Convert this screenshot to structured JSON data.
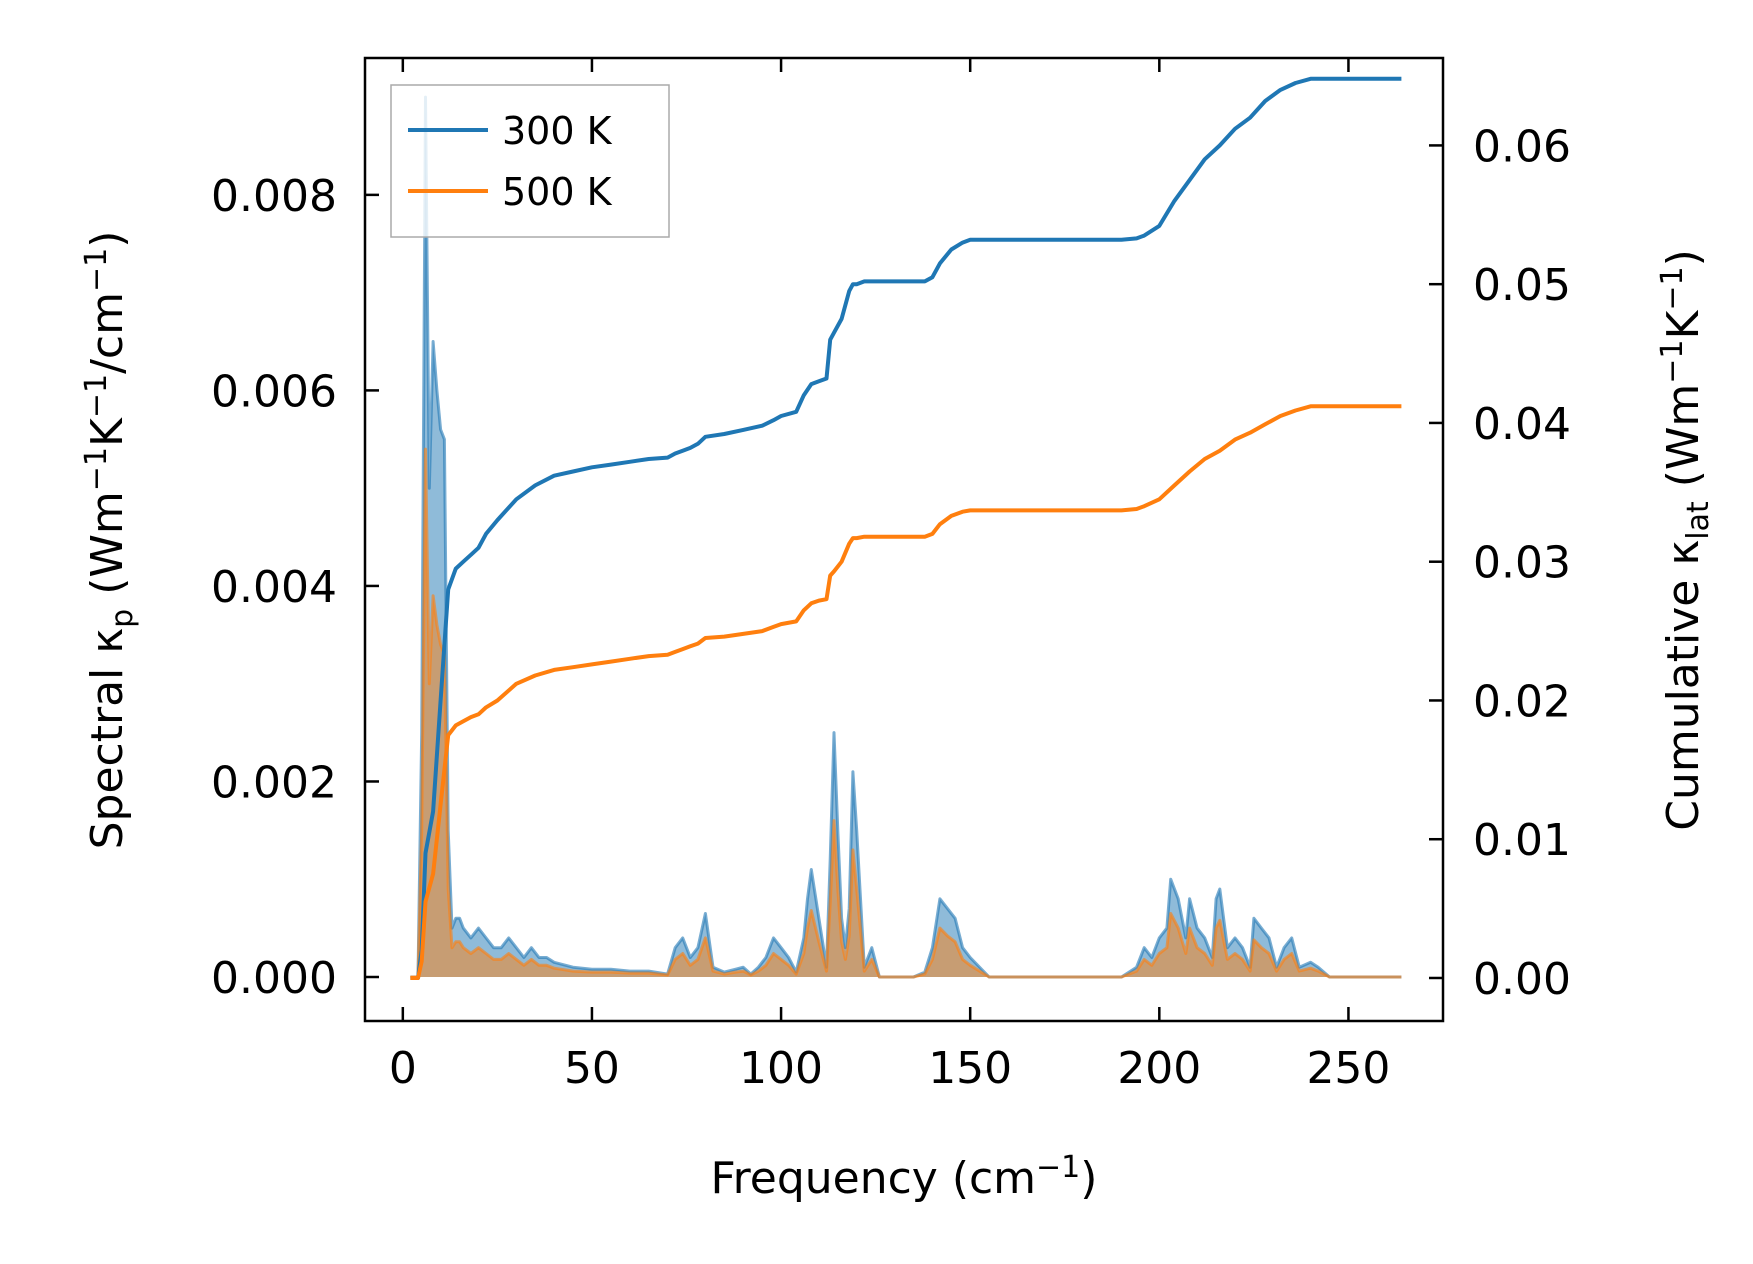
{
  "chart_data": {
    "type": "line",
    "xlabel": {
      "main": "Frequency (cm",
      "sup": "−1",
      "close": ")"
    },
    "ylabel_left": {
      "main": "Spectral κ",
      "sub": "p",
      "units": " (Wm",
      "sup1": "−1",
      "k": "K",
      "sup2": "−1",
      "percm": "/cm",
      "sup3": "−1",
      "close": ")"
    },
    "ylabel_right": {
      "main": "Cumulative κ",
      "sub": "lat",
      "units": " (Wm",
      "sup1": "−1",
      "k": "K",
      "sup2": "−1",
      "close": ")"
    },
    "xlim": [
      -10,
      275
    ],
    "ylim_left": [
      -0.00045,
      0.0094
    ],
    "ylim_right": [
      -0.0031,
      0.0663
    ],
    "xticks": [
      0,
      50,
      100,
      150,
      200,
      250
    ],
    "xtick_labels": [
      "0",
      "50",
      "100",
      "150",
      "200",
      "250"
    ],
    "yticks_left": [
      0,
      0.002,
      0.004,
      0.006,
      0.008
    ],
    "ytick_labels_left": [
      "0.000",
      "0.002",
      "0.004",
      "0.006",
      "0.008"
    ],
    "yticks_right": [
      0,
      0.01,
      0.02,
      0.03,
      0.04,
      0.05,
      0.06
    ],
    "ytick_labels_right": [
      "0.00",
      "0.01",
      "0.02",
      "0.03",
      "0.04",
      "0.05",
      "0.06"
    ],
    "legend_position": "top-left",
    "series": [
      {
        "name": "300 K",
        "color": "#1f77b4",
        "spectral": {
          "x": [
            2,
            4,
            5,
            6,
            7,
            8,
            9,
            10,
            11,
            12,
            13,
            14,
            15,
            16,
            18,
            20,
            22,
            24,
            26,
            28,
            30,
            32,
            34,
            36,
            38,
            40,
            45,
            50,
            55,
            60,
            65,
            70,
            72,
            74,
            76,
            78,
            80,
            82,
            85,
            88,
            90,
            92,
            94,
            96,
            98,
            100,
            102,
            104,
            106,
            107,
            108,
            110,
            112,
            113,
            114,
            115,
            116,
            117,
            118,
            119,
            120,
            122,
            124,
            126,
            130,
            135,
            138,
            140,
            142,
            144,
            146,
            148,
            150,
            155,
            160,
            170,
            180,
            190,
            194,
            196,
            198,
            200,
            202,
            203,
            205,
            207,
            208,
            210,
            212,
            214,
            215,
            216,
            218,
            220,
            222,
            224,
            225,
            227,
            229,
            231,
            233,
            235,
            237,
            240,
            242,
            245,
            250,
            255,
            260,
            264
          ],
          "y": [
            0,
            0,
            0.0025,
            0.009,
            0.005,
            0.0065,
            0.006,
            0.0056,
            0.0055,
            0.0015,
            0.0005,
            0.0006,
            0.0006,
            0.0005,
            0.0004,
            0.0005,
            0.0004,
            0.0003,
            0.0003,
            0.0004,
            0.0003,
            0.0002,
            0.0003,
            0.0002,
            0.0002,
            0.00015,
            0.0001,
            8e-05,
            8e-05,
            6e-05,
            6e-05,
            3e-05,
            0.0003,
            0.0004,
            0.0002,
            0.0003,
            0.00065,
            0.0001,
            5e-05,
            8e-05,
            0.0001,
            3e-05,
            0.0001,
            0.0002,
            0.0004,
            0.0003,
            0.0002,
            5e-05,
            0.0004,
            0.0008,
            0.0011,
            0.0006,
            0.0001,
            0.0012,
            0.0025,
            0.0015,
            0.0006,
            0.0003,
            0.0007,
            0.0021,
            0.0015,
            0.0001,
            0.0003,
            0,
            0,
            0,
            5e-05,
            0.0003,
            0.0008,
            0.0007,
            0.0006,
            0.0003,
            0.0002,
            0,
            0,
            0,
            0,
            0,
            0.0001,
            0.0003,
            0.0002,
            0.0004,
            0.0005,
            0.001,
            0.0008,
            0.0004,
            0.0008,
            0.0005,
            0.0004,
            0.0002,
            0.0008,
            0.0009,
            0.0003,
            0.0004,
            0.0003,
            0.0001,
            0.0006,
            0.0005,
            0.0004,
            0.0001,
            0.0003,
            0.0004,
            0.0001,
            0.00015,
            0.0001,
            0,
            0,
            0,
            0,
            0
          ]
        },
        "cumulative": {
          "x": [
            2,
            4,
            5,
            6,
            8,
            10,
            12,
            14,
            16,
            18,
            20,
            22,
            25,
            30,
            35,
            40,
            45,
            50,
            55,
            60,
            65,
            70,
            72,
            74,
            76,
            78,
            80,
            85,
            90,
            95,
            98,
            100,
            104,
            106,
            108,
            110,
            112,
            113,
            114,
            116,
            118,
            119,
            120,
            122,
            124,
            130,
            135,
            138,
            140,
            142,
            145,
            148,
            150,
            155,
            160,
            170,
            180,
            185,
            190,
            194,
            196,
            200,
            204,
            208,
            212,
            216,
            220,
            224,
            228,
            232,
            236,
            240,
            245,
            250,
            255,
            260,
            264
          ],
          "y": [
            0,
            0,
            0.002,
            0.009,
            0.012,
            0.02,
            0.028,
            0.0295,
            0.03,
            0.0305,
            0.031,
            0.032,
            0.033,
            0.0345,
            0.0355,
            0.0362,
            0.0365,
            0.0368,
            0.037,
            0.0372,
            0.0374,
            0.0375,
            0.0378,
            0.038,
            0.0382,
            0.0385,
            0.039,
            0.0392,
            0.0395,
            0.0398,
            0.0402,
            0.0405,
            0.0408,
            0.042,
            0.0428,
            0.043,
            0.0432,
            0.046,
            0.0465,
            0.0475,
            0.0495,
            0.05,
            0.05,
            0.0502,
            0.0502,
            0.0502,
            0.0502,
            0.0502,
            0.0505,
            0.0515,
            0.0525,
            0.053,
            0.0532,
            0.0532,
            0.0532,
            0.0532,
            0.0532,
            0.0532,
            0.0532,
            0.0533,
            0.0535,
            0.0542,
            0.056,
            0.0575,
            0.059,
            0.06,
            0.0612,
            0.062,
            0.0632,
            0.064,
            0.0645,
            0.0648,
            0.0648,
            0.0648,
            0.0648,
            0.0648,
            0.0648
          ]
        }
      },
      {
        "name": "500 K",
        "color": "#ff7f0e",
        "spectral": {
          "x": [
            2,
            4,
            5,
            6,
            7,
            8,
            9,
            10,
            11,
            12,
            13,
            14,
            15,
            16,
            18,
            20,
            22,
            24,
            26,
            28,
            30,
            32,
            34,
            36,
            38,
            40,
            45,
            50,
            55,
            60,
            65,
            70,
            72,
            74,
            76,
            78,
            80,
            82,
            85,
            88,
            90,
            92,
            94,
            96,
            98,
            100,
            102,
            104,
            106,
            107,
            108,
            110,
            112,
            113,
            114,
            115,
            116,
            117,
            118,
            119,
            120,
            122,
            124,
            126,
            130,
            135,
            138,
            140,
            142,
            144,
            146,
            148,
            150,
            155,
            160,
            170,
            180,
            190,
            194,
            196,
            198,
            200,
            202,
            203,
            205,
            207,
            208,
            210,
            212,
            214,
            215,
            216,
            218,
            220,
            222,
            224,
            225,
            227,
            229,
            231,
            233,
            235,
            237,
            240,
            242,
            245,
            250,
            255,
            260,
            264
          ],
          "y": [
            0,
            0,
            0.0015,
            0.0054,
            0.003,
            0.0039,
            0.0036,
            0.0034,
            0.0033,
            0.0009,
            0.0003,
            0.00036,
            0.00036,
            0.0003,
            0.00024,
            0.0003,
            0.00024,
            0.00018,
            0.00018,
            0.00024,
            0.00018,
            0.00012,
            0.00018,
            0.00012,
            0.00012,
            9e-05,
            6e-05,
            5e-05,
            5e-05,
            4e-05,
            4e-05,
            2e-05,
            0.00018,
            0.00024,
            0.00012,
            0.00018,
            0.0004,
            6e-05,
            3e-05,
            5e-05,
            6e-05,
            2e-05,
            6e-05,
            0.00012,
            0.00024,
            0.00018,
            0.00012,
            3e-05,
            0.00024,
            0.0005,
            0.00068,
            0.00036,
            6e-05,
            0.00075,
            0.0016,
            0.0009,
            0.00036,
            0.00018,
            0.00042,
            0.0013,
            0.0009,
            6e-05,
            0.00018,
            0,
            0,
            0,
            3e-05,
            0.00018,
            0.0005,
            0.00042,
            0.00036,
            0.00018,
            0.00012,
            0,
            0,
            0,
            0,
            0,
            6e-05,
            0.00018,
            0.00012,
            0.00024,
            0.0003,
            0.00065,
            0.0005,
            0.00024,
            0.0005,
            0.0003,
            0.00024,
            0.00012,
            0.0005,
            0.00058,
            0.00018,
            0.00024,
            0.00018,
            6e-05,
            0.00038,
            0.0003,
            0.00024,
            6e-05,
            0.00018,
            0.00024,
            6e-05,
            9e-05,
            6e-05,
            0,
            0,
            0,
            0,
            0
          ]
        },
        "cumulative": {
          "x": [
            2,
            4,
            5,
            6,
            8,
            10,
            12,
            14,
            16,
            18,
            20,
            22,
            25,
            30,
            35,
            40,
            45,
            50,
            55,
            60,
            65,
            70,
            72,
            74,
            76,
            78,
            80,
            85,
            90,
            95,
            98,
            100,
            104,
            106,
            108,
            110,
            112,
            113,
            114,
            116,
            118,
            119,
            120,
            122,
            124,
            130,
            135,
            138,
            140,
            142,
            145,
            148,
            150,
            155,
            160,
            170,
            180,
            185,
            190,
            194,
            196,
            200,
            204,
            208,
            212,
            216,
            220,
            224,
            228,
            232,
            236,
            240,
            245,
            250,
            255,
            260,
            264
          ],
          "y": [
            0,
            0,
            0.0012,
            0.0055,
            0.0075,
            0.0125,
            0.0175,
            0.0182,
            0.0185,
            0.0188,
            0.019,
            0.0195,
            0.02,
            0.0212,
            0.0218,
            0.0222,
            0.0224,
            0.0226,
            0.0228,
            0.023,
            0.0232,
            0.0233,
            0.0235,
            0.0237,
            0.0239,
            0.0241,
            0.0245,
            0.0246,
            0.0248,
            0.025,
            0.0253,
            0.0255,
            0.0257,
            0.0265,
            0.027,
            0.0272,
            0.0273,
            0.029,
            0.0293,
            0.03,
            0.0313,
            0.0317,
            0.0317,
            0.0318,
            0.0318,
            0.0318,
            0.0318,
            0.0318,
            0.032,
            0.0327,
            0.0333,
            0.0336,
            0.0337,
            0.0337,
            0.0337,
            0.0337,
            0.0337,
            0.0337,
            0.0337,
            0.0338,
            0.034,
            0.0345,
            0.0355,
            0.0365,
            0.0374,
            0.038,
            0.0388,
            0.0393,
            0.0399,
            0.0405,
            0.0409,
            0.0412,
            0.0412,
            0.0412,
            0.0412,
            0.0412,
            0.0412
          ]
        }
      }
    ]
  }
}
